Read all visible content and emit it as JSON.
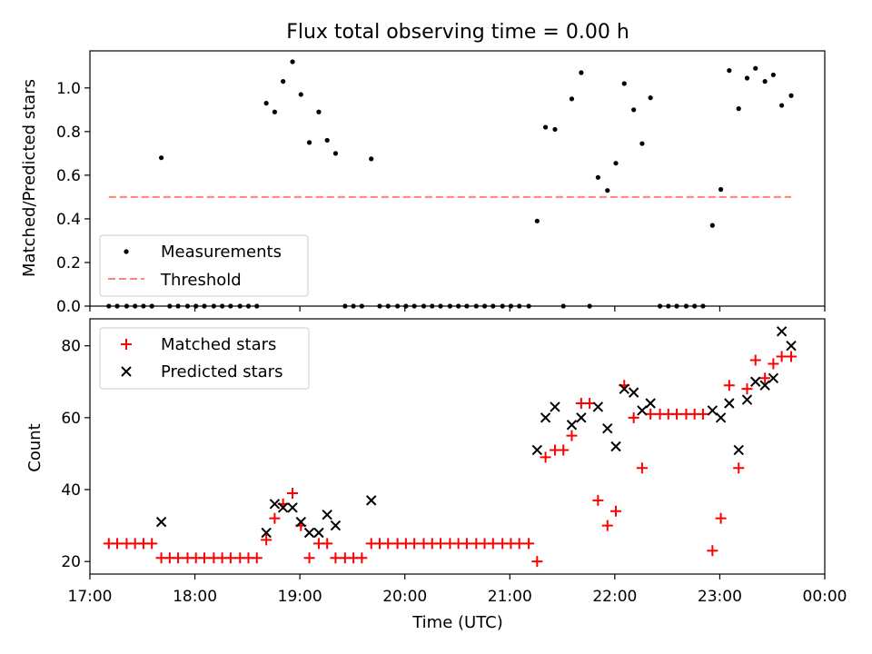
{
  "chart_data": [
    {
      "type": "scatter",
      "title": "Flux total observing time = 0.00 h",
      "xlabel": "",
      "ylabel": "Matched/Predicted stars",
      "xlim": [
        17.0,
        24.0
      ],
      "ylim": [
        0.0,
        1.17
      ],
      "yticks": [
        0.0,
        0.2,
        0.4,
        0.6,
        0.8,
        1.0
      ],
      "ytick_labels": [
        "0.0",
        "0.2",
        "0.4",
        "0.6",
        "0.8",
        "1.0"
      ],
      "legend_location": "lower-left",
      "series": [
        {
          "name": "Measurements",
          "marker": "dot",
          "color": "#000000",
          "x": [
            17.18,
            17.26,
            17.35,
            17.43,
            17.51,
            17.59,
            17.68,
            17.76,
            17.84,
            17.93,
            18.01,
            18.09,
            18.18,
            18.26,
            18.34,
            18.43,
            18.51,
            18.59,
            18.68,
            18.76,
            18.84,
            18.93,
            19.01,
            19.09,
            19.18,
            19.26,
            19.34,
            19.43,
            19.51,
            19.59,
            19.68,
            19.76,
            19.84,
            19.93,
            20.01,
            20.09,
            20.18,
            20.26,
            20.34,
            20.43,
            20.51,
            20.59,
            20.68,
            20.76,
            20.84,
            20.93,
            21.01,
            21.09,
            21.18,
            21.26,
            21.34,
            21.43,
            21.51,
            21.59,
            21.68,
            21.76,
            21.84,
            21.93,
            22.01,
            22.09,
            22.18,
            22.26,
            22.34,
            22.43,
            22.51,
            22.59,
            22.68,
            22.76,
            22.84,
            22.93,
            23.01,
            23.09,
            23.18,
            23.26,
            23.34,
            23.43,
            23.51,
            23.59,
            23.68
          ],
          "y": [
            0,
            0,
            0,
            0,
            0,
            0,
            0.68,
            0,
            0,
            0,
            0,
            0,
            0,
            0,
            0,
            0,
            0,
            0,
            0.93,
            0.89,
            1.03,
            1.12,
            0.97,
            0.75,
            0.89,
            0.76,
            0.7,
            0,
            0,
            0,
            0.675,
            0,
            0,
            0,
            0,
            0,
            0,
            0,
            0,
            0,
            0,
            0,
            0,
            0,
            0,
            0,
            0,
            0,
            0,
            0.39,
            0.82,
            0.81,
            0,
            0.95,
            1.07,
            0,
            0.59,
            0.53,
            0.655,
            1.02,
            0.9,
            0.745,
            0.955,
            0,
            0,
            0,
            0,
            0,
            0,
            0.37,
            0.535,
            1.08,
            0.905,
            1.045,
            1.09,
            1.03,
            1.06,
            0.92,
            0.965
          ]
        },
        {
          "name": "Threshold",
          "style": "dashed-line",
          "color": "#ff8080",
          "x": [
            17.18,
            23.68
          ],
          "y": [
            0.5,
            0.5
          ]
        }
      ]
    },
    {
      "type": "scatter",
      "title": "",
      "xlabel": "Time (UTC)",
      "ylabel": "Count",
      "xlim": [
        17.0,
        24.0
      ],
      "ylim": [
        16.5,
        87.5
      ],
      "yticks": [
        20,
        40,
        60,
        80
      ],
      "ytick_labels": [
        "20",
        "40",
        "60",
        "80"
      ],
      "xticks": [
        17,
        18,
        19,
        20,
        21,
        22,
        23,
        24
      ],
      "xtick_labels": [
        "17:00",
        "18:00",
        "19:00",
        "20:00",
        "21:00",
        "22:00",
        "23:00",
        "00:00"
      ],
      "legend_location": "upper-left",
      "series": [
        {
          "name": "Matched stars",
          "marker": "plus",
          "color": "#ff0000",
          "x": [
            17.18,
            17.26,
            17.35,
            17.43,
            17.51,
            17.59,
            17.68,
            17.76,
            17.84,
            17.93,
            18.01,
            18.09,
            18.18,
            18.26,
            18.34,
            18.43,
            18.51,
            18.59,
            18.68,
            18.76,
            18.84,
            18.93,
            19.01,
            19.09,
            19.18,
            19.26,
            19.34,
            19.43,
            19.51,
            19.59,
            19.68,
            19.76,
            19.84,
            19.93,
            20.01,
            20.09,
            20.18,
            20.26,
            20.34,
            20.43,
            20.51,
            20.59,
            20.68,
            20.76,
            20.84,
            20.93,
            21.01,
            21.09,
            21.18,
            21.26,
            21.34,
            21.43,
            21.51,
            21.59,
            21.68,
            21.76,
            21.84,
            21.93,
            22.01,
            22.09,
            22.18,
            22.26,
            22.34,
            22.43,
            22.51,
            22.59,
            22.68,
            22.76,
            22.84,
            22.93,
            23.01,
            23.09,
            23.18,
            23.26,
            23.34,
            23.43,
            23.51,
            23.59,
            23.68
          ],
          "y": [
            25,
            25,
            25,
            25,
            25,
            25,
            21,
            21,
            21,
            21,
            21,
            21,
            21,
            21,
            21,
            21,
            21,
            21,
            26,
            32,
            36,
            39,
            30,
            21,
            25,
            25,
            21,
            21,
            21,
            21,
            25,
            25,
            25,
            25,
            25,
            25,
            25,
            25,
            25,
            25,
            25,
            25,
            25,
            25,
            25,
            25,
            25,
            25,
            25,
            20,
            49,
            51,
            51,
            55,
            64,
            64,
            37,
            30,
            34,
            69,
            60,
            46,
            61,
            61,
            61,
            61,
            61,
            61,
            61,
            23,
            32,
            69,
            46,
            68,
            76,
            71,
            75,
            77,
            77
          ]
        },
        {
          "name": "Predicted stars",
          "marker": "x",
          "color": "#000000",
          "x": [
            17.68,
            18.68,
            18.76,
            18.84,
            18.93,
            19.01,
            19.09,
            19.18,
            19.26,
            19.34,
            19.68,
            21.26,
            21.34,
            21.43,
            21.59,
            21.68,
            21.84,
            21.93,
            22.01,
            22.09,
            22.18,
            22.26,
            22.34,
            22.93,
            23.01,
            23.09,
            23.18,
            23.26,
            23.34,
            23.43,
            23.51,
            23.59,
            23.68
          ],
          "y": [
            31,
            28,
            36,
            35,
            35,
            31,
            28,
            28,
            33,
            30,
            37,
            51,
            60,
            63,
            58,
            60,
            63,
            57,
            52,
            68,
            67,
            62,
            64,
            62,
            60,
            64,
            51,
            65,
            70,
            69,
            71,
            84,
            80
          ]
        }
      ]
    }
  ]
}
